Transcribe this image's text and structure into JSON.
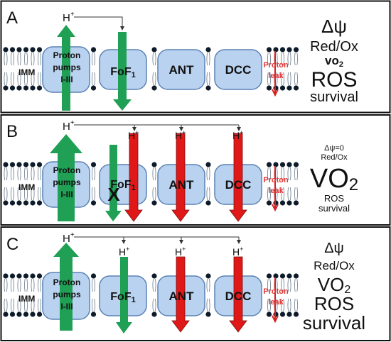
{
  "colors": {
    "green": "#1fa055",
    "red": "#e01818",
    "complex_fill": "#b9d2f0",
    "complex_stroke": "#5a82b4",
    "lipid": "#0d1b2a",
    "leak": "#e23a3a"
  },
  "common": {
    "membrane_label": "IMM",
    "proton_pumps": [
      "Proton",
      "pumps",
      "I-III"
    ],
    "fof1_main": "FoF",
    "fof1_sub": "1",
    "ant": "ANT",
    "dcc": "DCC",
    "proton_leak": [
      "Proton",
      "leak"
    ],
    "h_main": "H",
    "h_sup": "+"
  },
  "panels": [
    {
      "letter": "A",
      "labels": {
        "psi": "Δψ",
        "redox": "Red/Ox",
        "vo2_main": "vo",
        "vo2_sub": "2",
        "ros": "ROS",
        "survival": "survival"
      }
    },
    {
      "letter": "B",
      "inhibitor": "X",
      "labels": {
        "psi": "Δψ=0",
        "redox": "Red/Ox",
        "vo2_main": "VO",
        "vo2_sub": "2",
        "ros": "ROS",
        "survival": "survival"
      }
    },
    {
      "letter": "C",
      "labels": {
        "psi": "Δψ",
        "redox": "Red/Ox",
        "vo2_main": "VO",
        "vo2_sub": "2",
        "ros": "ROS",
        "survival": "survival"
      }
    }
  ]
}
